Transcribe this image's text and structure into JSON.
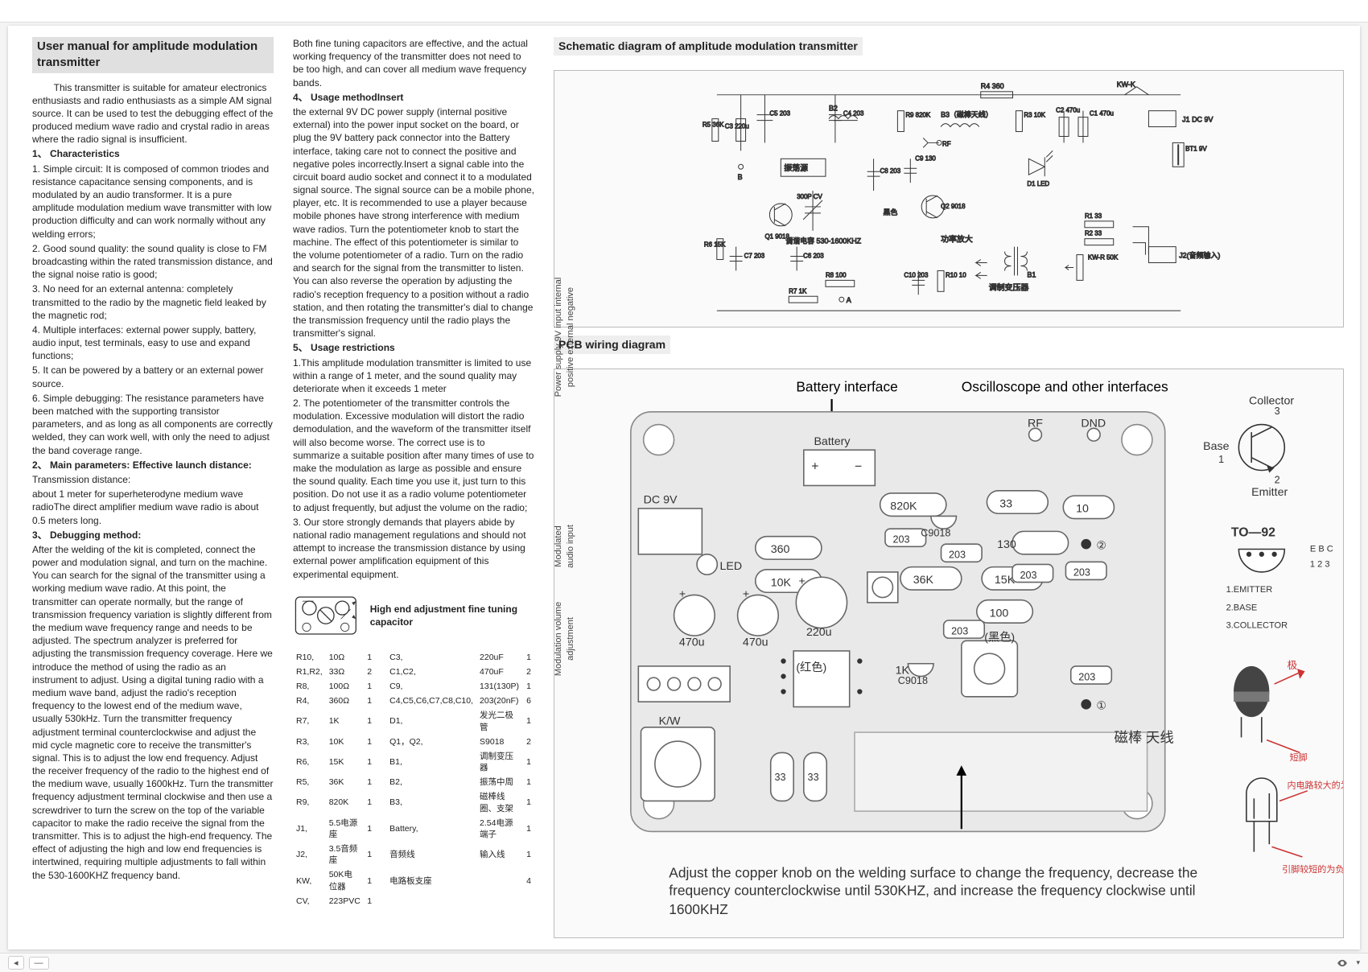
{
  "toolbar": {
    "dash": "—",
    "pagefield": ""
  },
  "col1": {
    "title": "User manual for amplitude modulation transmitter",
    "intro": "        This transmitter is suitable for amateur electronics enthusiasts and radio enthusiasts as a simple AM signal source. It can be used to test the debugging effect of the produced medium wave radio and crystal radio in areas where the radio signal is insufficient.",
    "h1": "1、  Characteristics",
    "c1": "1. Simple circuit: It is composed of common triodes and resistance capacitance sensing components, and is modulated by an audio transformer. It is a pure amplitude modulation medium wave transmitter with low production difficulty and can work normally without any welding errors;",
    "c2": "2. Good sound quality: the sound quality is close to FM broadcasting within the rated transmission distance, and the signal noise ratio is good;",
    "c3": "3. No need for an external antenna: completely transmitted to the radio by the magnetic field leaked by the magnetic rod;",
    "c4": "4. Multiple interfaces: external power supply, battery, audio input, test terminals, easy to use and expand functions;",
    "c5": "5. It can be powered by a battery or an external power source.",
    "c6": "6. Simple debugging: The resistance parameters have been matched with the supporting transistor parameters, and as long as all components are correctly welded, they can work well, with only the need to adjust the band coverage range.",
    "h2": "2、  Main parameters: Effective launch distance:",
    "p2a": "  Transmission distance:",
    "p2b": "about 1 meter for superheterodyne medium wave radioThe direct amplifier medium wave radio is about 0.5 meters long.",
    "h3": "3、  Debugging method:",
    "p3": "After the welding of the kit is completed, connect the power and modulation signal, and turn on the machine. You can search for the signal of the transmitter using a working medium wave radio. At this point, the transmitter can operate normally, but the range of transmission frequency variation is slightly different from the medium wave frequency range and needs to be adjusted. The spectrum analyzer is preferred for adjusting the transmission frequency coverage. Here we introduce the method of using the radio as an instrument to adjust. Using a digital tuning radio with a medium wave band, adjust the radio's reception frequency to the lowest end of the medium wave, usually 530kHz. Turn the transmitter frequency adjustment terminal counterclockwise and adjust the mid cycle magnetic core to receive the transmitter's signal. This is to adjust the low end frequency. Adjust the receiver frequency of the radio to the highest end of the medium wave, usually 1600kHz. Turn the transmitter frequency adjustment terminal clockwise and then use a screwdriver to turn the screw on the top of the variable capacitor to make the radio receive the signal from the transmitter. This is to adjust the high-end frequency. The effect of adjusting the high and low end frequencies is intertwined, requiring multiple adjustments to fall within the 530-1600KHZ frequency band."
  },
  "col2": {
    "p0": "Both fine tuning capacitors are effective, and the actual working frequency of the transmitter does not need to be too high, and can cover all medium wave frequency bands.",
    "h4": "4、  Usage methodInsert",
    "p4": "the external 9V DC power supply (internal positive external) into the power input socket on the board, or plug the 9V battery pack connector into the Battery interface, taking care not to connect the positive and negative poles incorrectly.Insert a signal cable into the circuit board audio socket and connect it to a modulated signal source. The signal source can be a mobile phone, player, etc. It is recommended to use a player because mobile phones have strong interference with medium wave radios. Turn the potentiometer knob to start the machine. The effect of this potentiometer is similar to the volume potentiometer of a radio. Turn on the radio and search for the signal from the transmitter to listen. You can also reverse the operation by adjusting the radio's reception frequency to a position without a radio station, and then rotating the transmitter's dial to change the transmission frequency until the radio plays the transmitter's signal.",
    "h5": "5、  Usage restrictions",
    "p5a": "1.This amplitude modulation transmitter is limited to use within a range of 1 meter, and the sound quality may deteriorate when it exceeds 1 meter",
    "p5b": "2. The potentiometer of the transmitter controls the modulation. Excessive modulation will distort the radio demodulation, and the waveform of the transmitter itself will also become worse. The correct use is to summarize a suitable position after many times of use to make the modulation as large as possible and ensure the sound quality. Each time you use it, just turn to this position. Do not use it as a radio volume potentiometer to adjust frequently, but adjust the volume on the radio;",
    "p5c": "3. Our store strongly demands that players abide by national radio management regulations and should not attempt to increase the transmission distance by using external power amplification equipment of this experimental equipment.",
    "caplabel": "High end adjustment fine tuning capacitor"
  },
  "bom": [
    [
      "R10,",
      "10Ω",
      "1",
      "C3,",
      "220uF",
      "1"
    ],
    [
      "R1,R2,",
      "33Ω",
      "2",
      "C1,C2,",
      "470uF",
      "2"
    ],
    [
      "R8,",
      "100Ω",
      "1",
      "C9,",
      "131(130P)",
      "1"
    ],
    [
      "R4,",
      "360Ω",
      "1",
      "C4,C5,C6,C7,C8,C10,",
      "203(20nF)",
      "6"
    ],
    [
      "R7,",
      "1K",
      "1",
      "D1,",
      "发光二极管",
      "1"
    ],
    [
      "R3,",
      "10K",
      "1",
      "Q1，Q2,",
      "S9018",
      "2"
    ],
    [
      "R6,",
      "15K",
      "1",
      "B1,",
      "调制变压器",
      "1"
    ],
    [
      "R5,",
      "36K",
      "1",
      "B2,",
      "振荡中周",
      "1"
    ],
    [
      "R9,",
      "820K",
      "1",
      "B3,",
      "磁棒线圈、支架",
      "1"
    ],
    [
      "J1,",
      "5.5电源座",
      "1",
      "Battery,",
      "2.54电源端子",
      "1"
    ],
    [
      "J2,",
      "3.5音频座",
      "1",
      "音频线",
      "输入线",
      "1"
    ],
    [
      "KW,",
      "50K电位器",
      "1",
      "电路板支座",
      "",
      "4"
    ],
    [
      "CV,",
      "223PVC",
      "1",
      "",
      "",
      ""
    ]
  ],
  "right": {
    "schem_title": "Schematic diagram of amplitude modulation transmitter",
    "pcb_title": "PCB wiring diagram",
    "label_psu": "Power supply 9V input internal positive external negative",
    "label_audio": "Modulated audio input",
    "label_modvol": "Modulation volume adjustment",
    "label_batt": "Battery interface",
    "label_osc": "Oscilloscope and other interfaces",
    "label_batt_small": "Battery",
    "label_dc9v": "DC 9V",
    "label_led": "LED",
    "label_rf": "RF",
    "label_dnd": "DND",
    "label_kw": "K/W",
    "label_ant": "磁棒\n天线",
    "bottom_note": "Adjust the copper knob on the welding surface to change the frequency, decrease the frequency counterclockwise until 530KHZ, and increase the frequency clockwise until 1600KHZ",
    "to92": "TO—92",
    "collector": "Collector",
    "base": "Base",
    "emitter": "Emitter",
    "pinout1": "1.EMITTER",
    "pinout2": "2.BASE",
    "pinout3": "3.COLLECTOR",
    "cap_pos": "极",
    "led_note": "内电路较大的为负极",
    "led_note2": "引脚较短的为负极"
  },
  "schem": {
    "r4": "R4  360",
    "r9": "R9\n820K",
    "r3": "R3\n10K",
    "r5": "R5\n36K",
    "r6": "R6\n15K",
    "r7": "R7  1K",
    "r8": "R8  100",
    "r10": "R10\n10",
    "r1": "R1  33",
    "r2": "R2  33",
    "c1": "C1\n470u",
    "c2": "C2\n470u",
    "c3": "C3\n220u",
    "c4": "C4\n203",
    "c5": "C5\n203",
    "c6": "C6\n203",
    "c7": "C7\n203",
    "c8": "C8\n203",
    "c9": "C9\n130",
    "c10": "C10\n203",
    "q1": "Q1\n9018",
    "q2": "Q2\n9018",
    "b1": "B1",
    "b2": "B2",
    "b3": "B3（磁棒天线）",
    "d1": "D1\nLED",
    "bt1": "BT1\n9V",
    "j1": "J1 DC 9V",
    "j2": "J2(音频输入)",
    "kwk": "KW-K",
    "kwr": "KW-R\n50K",
    "cv": "300P\nCV",
    "rf": "RF",
    "a": "A",
    "b": "B",
    "osc": "振荡源",
    "tune": "调谐电容\n530-1600KHZ",
    "black": "黑色",
    "amp": "功率放大",
    "xfmr": "调制变压器"
  },
  "pcbvals": {
    "v820k": "820K",
    "v360": "360",
    "v10k": "10K",
    "v220u": "220u",
    "v470u": "470u",
    "v36k": "36K",
    "v15k": "15K",
    "v203": "203",
    "v130": "130",
    "v10": "10",
    "v100": "100",
    "v33": "33",
    "v1k": "1K",
    "c9018": "C9018",
    "red": "(红色)",
    "black": "(黑色)"
  },
  "footer": {
    "left_arrow": "⬅",
    "dash": "—"
  }
}
